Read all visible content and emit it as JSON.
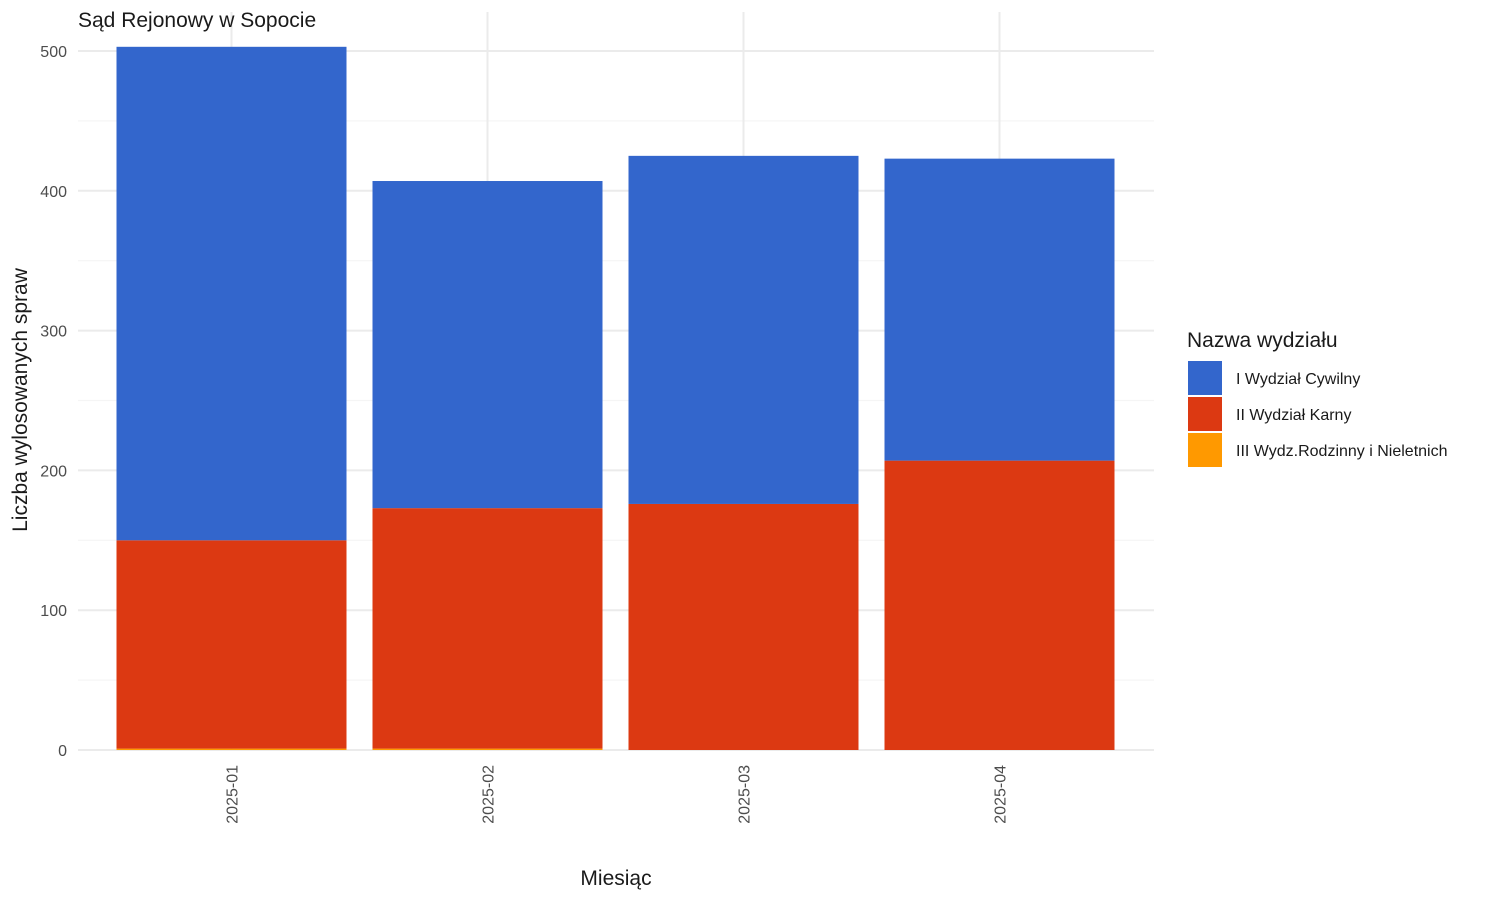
{
  "chart_data": {
    "type": "bar",
    "stacked": true,
    "title": "Sąd Rejonowy w Sopocie",
    "xlabel": "Miesiąc",
    "ylabel": "Liczba wylosowanych spraw",
    "categories": [
      "2025-01",
      "2025-02",
      "2025-03",
      "2025-04"
    ],
    "yticks": [
      0,
      100,
      200,
      300,
      400,
      500
    ],
    "ytick_labels": [
      "0",
      "100",
      "200",
      "300",
      "400",
      "500"
    ],
    "ylim": [
      0,
      510
    ],
    "grid": true,
    "legend_position": "right",
    "legend_title": "Nazwa wydziału",
    "series": [
      {
        "name": "III Wydz.Rodzinny i Nieletnich",
        "color": "#FF9900",
        "values": [
          1,
          1,
          0,
          0
        ]
      },
      {
        "name": "II Wydział Karny",
        "color": "#DC3912",
        "values": [
          149,
          172,
          176,
          207
        ]
      },
      {
        "name": "I Wydział Cywilny",
        "color": "#3366CC",
        "values": [
          353,
          234,
          249,
          216
        ]
      }
    ],
    "legend_order": [
      "I Wydział Cywilny",
      "II Wydział Karny",
      "III Wydz.Rodzinny i Nieletnich"
    ]
  }
}
